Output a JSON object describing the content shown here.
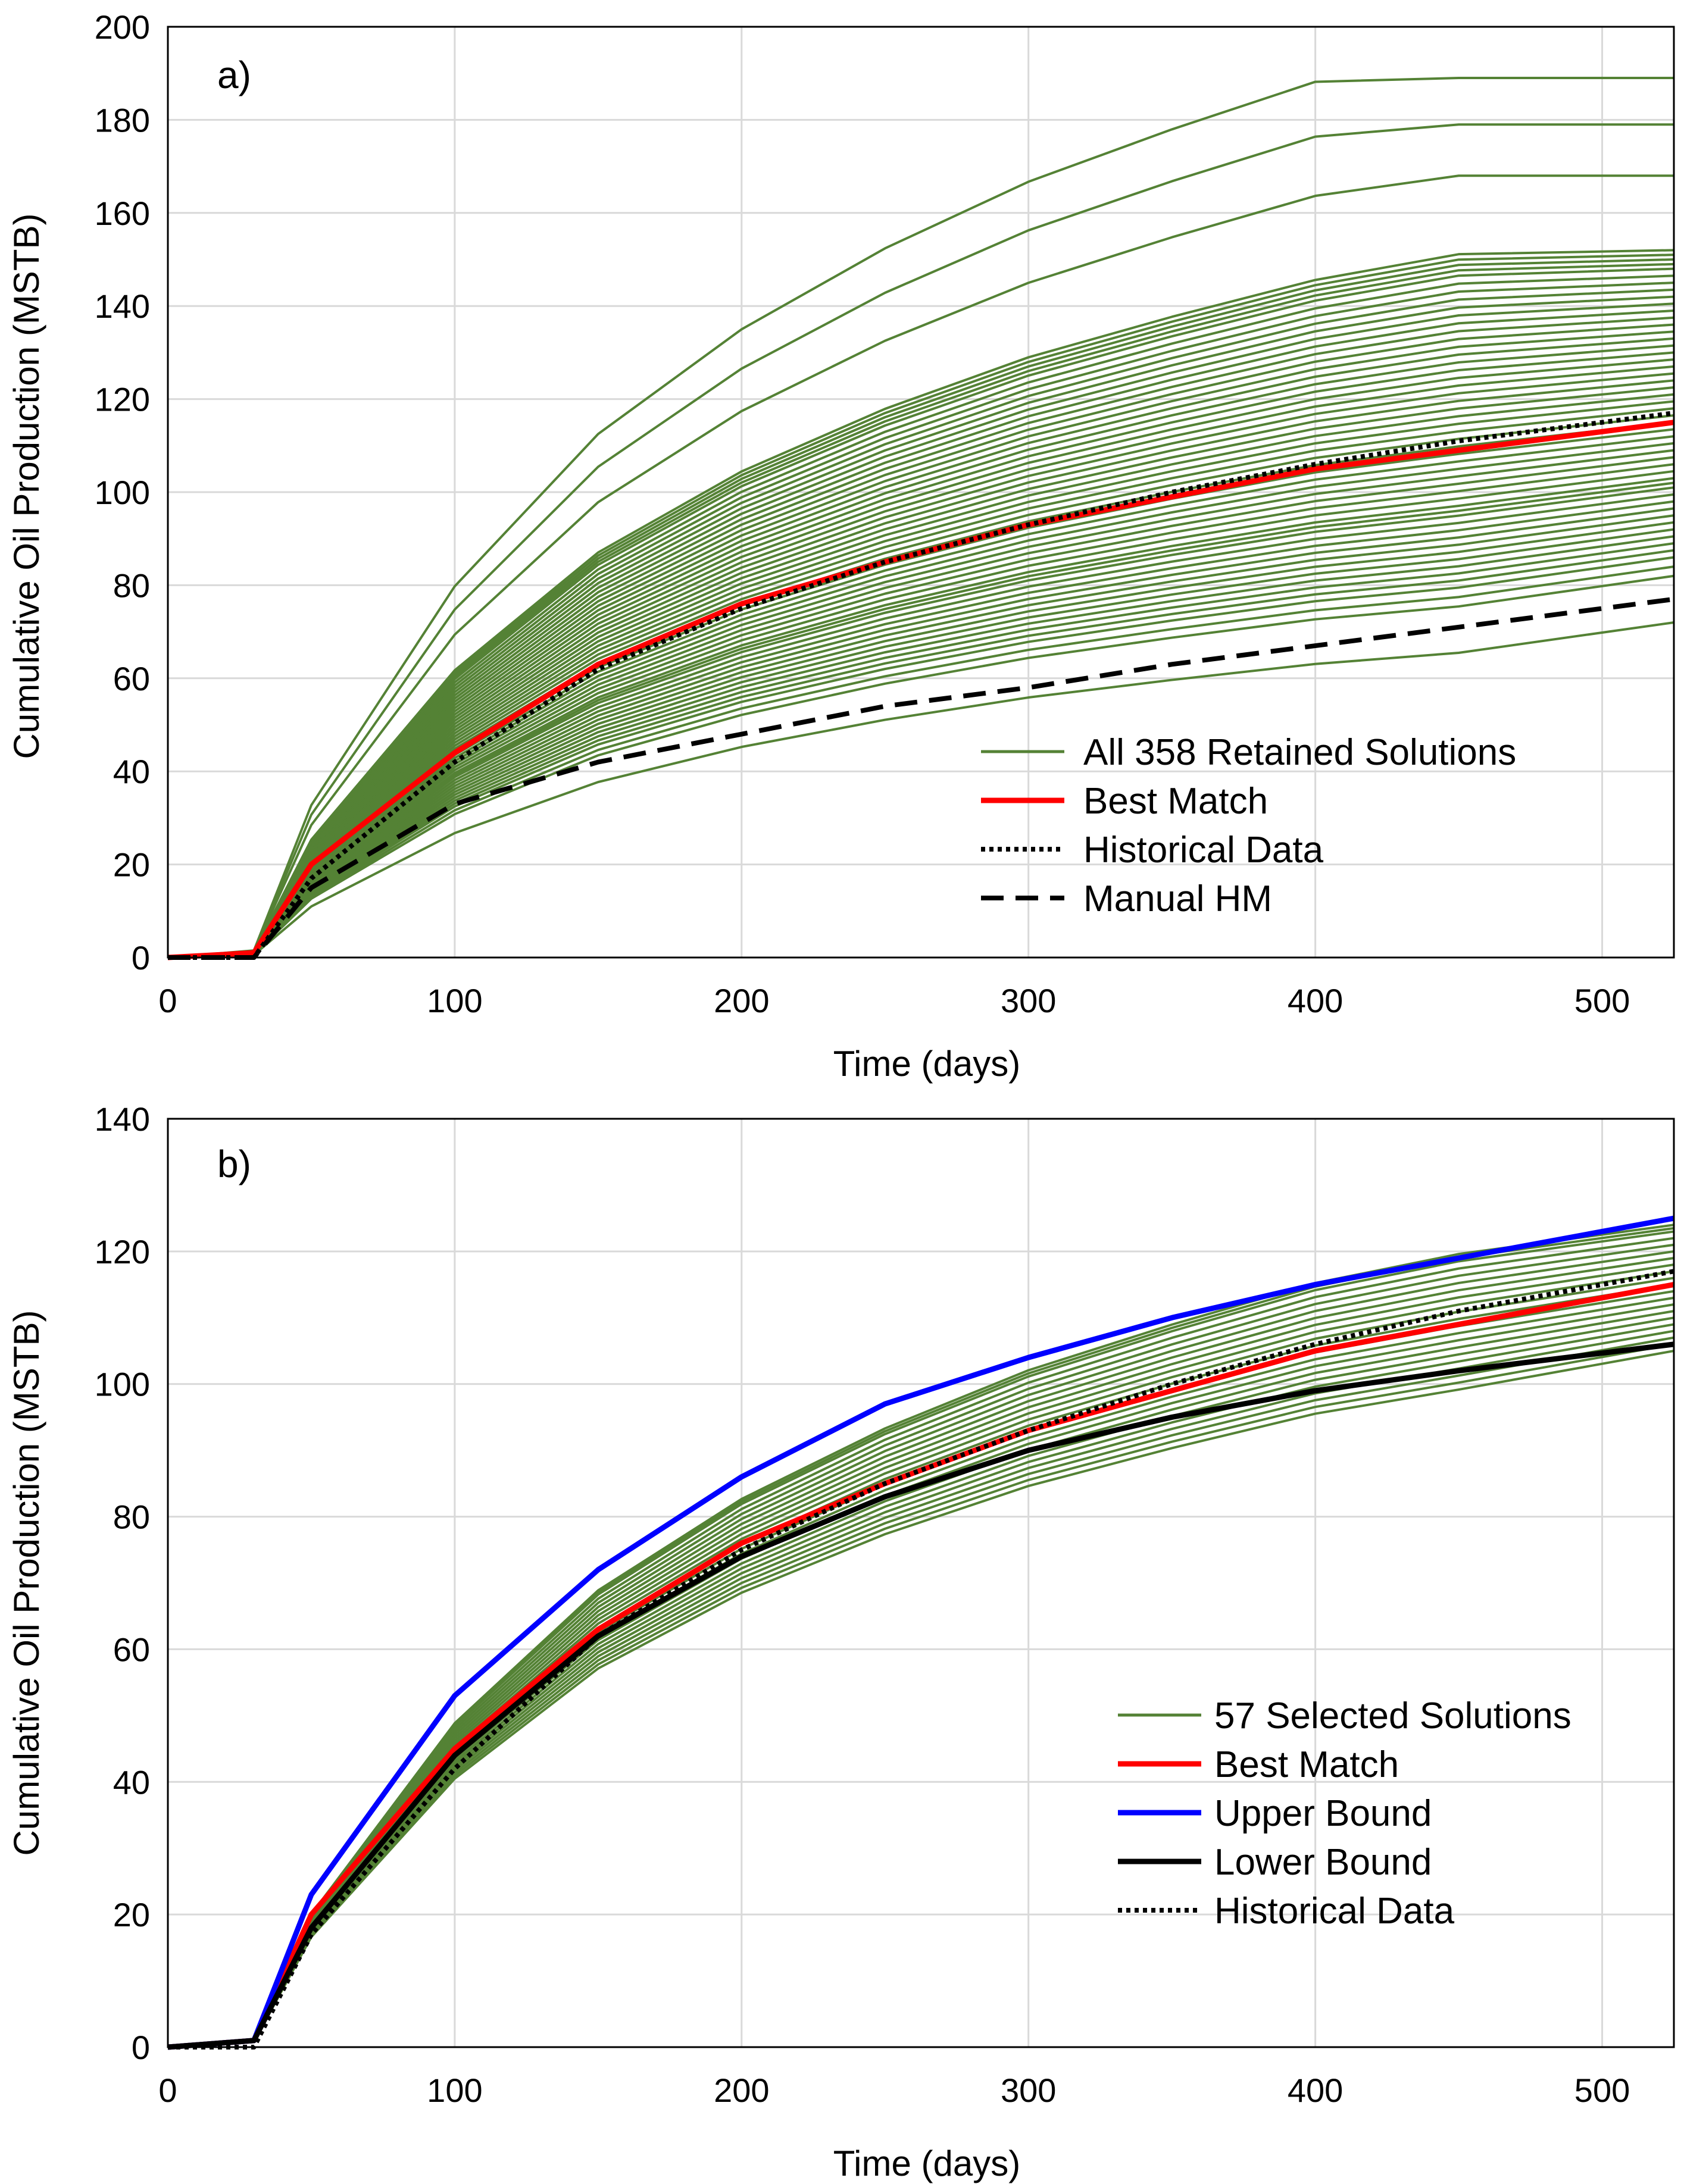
{
  "chart_data": [
    {
      "type": "line",
      "panel_label": "a)",
      "xlabel": "Time (days)",
      "ylabel": "Cumulative Oil Production (MSTB)",
      "xlim": [
        0,
        525
      ],
      "ylim": [
        0,
        200
      ],
      "xticks": [
        0,
        100,
        200,
        300,
        400,
        500
      ],
      "yticks": [
        0,
        20,
        40,
        60,
        80,
        100,
        120,
        140,
        160,
        180,
        200
      ],
      "grid": true,
      "legend_position": "bottom-right",
      "colors": {
        "solutions": "#548235",
        "best": "#ff0000",
        "historical": "#000000",
        "manual": "#000000"
      },
      "ensemble_note": "358 retained solutions; curve family spans the final values listed",
      "ensemble_final_values": [
        72,
        82,
        86,
        89,
        92,
        95,
        98,
        101,
        103,
        106,
        109,
        112,
        115,
        118,
        121,
        124,
        127,
        130,
        133,
        136,
        139,
        142,
        145,
        148,
        150,
        152,
        168,
        179,
        189
      ],
      "series": [
        {
          "name": "All 358 Retained Solutions",
          "style": "solid-green",
          "x": [
            0,
            30,
            50,
            100,
            150,
            200,
            250,
            300,
            350,
            400,
            450,
            525
          ],
          "y": [
            0,
            1,
            18,
            45,
            62,
            74,
            84,
            91,
            98,
            104,
            109,
            116
          ]
        },
        {
          "name": "Best Match",
          "style": "solid-red",
          "x": [
            0,
            30,
            50,
            100,
            150,
            200,
            250,
            300,
            350,
            400,
            450,
            525
          ],
          "y": [
            0,
            1,
            20,
            44,
            63,
            76,
            85,
            93,
            99,
            105,
            109,
            115
          ]
        },
        {
          "name": "Historical Data",
          "style": "dotted-black",
          "x": [
            0,
            30,
            50,
            100,
            150,
            200,
            250,
            300,
            350,
            400,
            450,
            525
          ],
          "y": [
            0,
            0,
            17,
            42,
            62,
            75,
            85,
            93,
            100,
            106,
            111,
            117
          ]
        },
        {
          "name": "Manual HM",
          "style": "dashed-black",
          "x": [
            0,
            30,
            50,
            100,
            150,
            200,
            250,
            300,
            350,
            400,
            450,
            525
          ],
          "y": [
            0,
            0,
            15,
            33,
            42,
            48,
            54,
            58,
            63,
            67,
            71,
            77
          ]
        }
      ]
    },
    {
      "type": "line",
      "panel_label": "b)",
      "xlabel": "Time (days)",
      "ylabel": "Cumulative Oil Production (MSTB)",
      "xlim": [
        0,
        525
      ],
      "ylim": [
        0,
        140
      ],
      "xticks": [
        0,
        100,
        200,
        300,
        400,
        500
      ],
      "yticks": [
        0,
        20,
        40,
        60,
        80,
        100,
        120,
        140
      ],
      "grid": true,
      "legend_position": "bottom-right",
      "colors": {
        "solutions": "#548235",
        "best": "#ff0000",
        "upper": "#0000ff",
        "lower": "#000000",
        "historical": "#000000"
      },
      "ensemble_note": "57 selected solutions between lower and upper bound",
      "ensemble_final_values": [
        105,
        107,
        109,
        111,
        113,
        115,
        117,
        119,
        121,
        123,
        124
      ],
      "series": [
        {
          "name": "57 Selected Solutions",
          "style": "solid-green",
          "x": [
            0,
            30,
            50,
            100,
            150,
            200,
            250,
            300,
            350,
            400,
            450,
            525
          ],
          "y": [
            0,
            1,
            19,
            46,
            65,
            78,
            88,
            96,
            103,
            108,
            112,
            118
          ]
        },
        {
          "name": "Best Match",
          "style": "solid-red",
          "x": [
            0,
            30,
            50,
            100,
            150,
            200,
            250,
            300,
            350,
            400,
            450,
            525
          ],
          "y": [
            0,
            1,
            20,
            45,
            63,
            76,
            85,
            93,
            99,
            105,
            109,
            115
          ]
        },
        {
          "name": "Upper Bound",
          "style": "solid-blue",
          "x": [
            0,
            30,
            50,
            100,
            150,
            200,
            250,
            300,
            350,
            400,
            450,
            525
          ],
          "y": [
            0,
            1,
            23,
            53,
            72,
            86,
            97,
            104,
            110,
            115,
            119,
            125
          ]
        },
        {
          "name": "Lower Bound",
          "style": "solid-black",
          "x": [
            0,
            30,
            50,
            100,
            150,
            200,
            250,
            300,
            350,
            400,
            450,
            525
          ],
          "y": [
            0,
            1,
            18,
            44,
            62,
            74,
            83,
            90,
            95,
            99,
            102,
            106
          ]
        },
        {
          "name": "Historical Data",
          "style": "dotted-black",
          "x": [
            0,
            30,
            50,
            100,
            150,
            200,
            250,
            300,
            350,
            400,
            450,
            525
          ],
          "y": [
            0,
            0,
            17,
            42,
            62,
            75,
            85,
            93,
            100,
            106,
            111,
            117
          ]
        }
      ]
    }
  ]
}
